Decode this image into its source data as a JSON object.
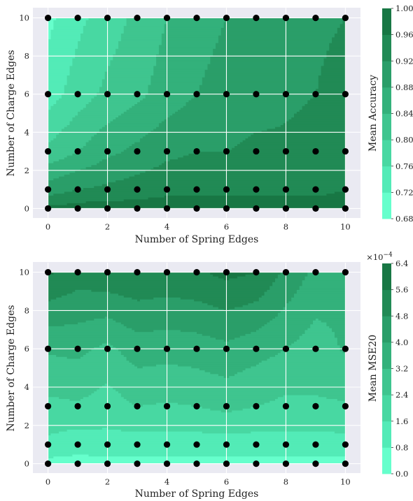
{
  "chart_data": [
    {
      "type": "contour",
      "xlabel": "Number of Spring Edges",
      "ylabel": "Number of Charge Edges",
      "xlim": [
        -0.5,
        10.5
      ],
      "ylim": [
        -0.5,
        10.5
      ],
      "xticks": [
        "0",
        "2",
        "4",
        "6",
        "8",
        "10"
      ],
      "yticks": [
        "0",
        "2",
        "4",
        "6",
        "8",
        "10"
      ],
      "x": [
        0,
        1,
        2,
        3,
        4,
        5,
        6,
        7,
        8,
        9,
        10
      ],
      "y": [
        0,
        1,
        3,
        6,
        10
      ],
      "z": [
        [
          0.97,
          0.98,
          0.98,
          0.98,
          0.98,
          0.98,
          0.98,
          0.98,
          0.98,
          0.98,
          0.98
        ],
        [
          0.9,
          0.92,
          0.93,
          0.94,
          0.95,
          0.95,
          0.95,
          0.95,
          0.95,
          0.95,
          0.96
        ],
        [
          0.81,
          0.84,
          0.87,
          0.89,
          0.91,
          0.92,
          0.92,
          0.93,
          0.93,
          0.94,
          0.96
        ],
        [
          0.74,
          0.78,
          0.81,
          0.83,
          0.86,
          0.88,
          0.89,
          0.9,
          0.91,
          0.92,
          0.96
        ],
        [
          0.71,
          0.75,
          0.78,
          0.81,
          0.84,
          0.87,
          0.88,
          0.89,
          0.89,
          0.9,
          0.92
        ]
      ],
      "colorbar": {
        "label": "Mean Accuracy",
        "levels": [
          0.68,
          0.72,
          0.76,
          0.8,
          0.84,
          0.88,
          0.92,
          0.96,
          1.0
        ],
        "ticks": [
          "0.68",
          "0.72",
          "0.76",
          "0.80",
          "0.84",
          "0.88",
          "0.92",
          "0.96",
          "1.00"
        ]
      },
      "grid": true,
      "markers": "black dots at every grid point"
    },
    {
      "type": "contour",
      "xlabel": "Number of Spring Edges",
      "ylabel": "Number of Charge Edges",
      "xlim": [
        -0.5,
        10.5
      ],
      "ylim": [
        -0.5,
        10.5
      ],
      "xticks": [
        "0",
        "2",
        "4",
        "6",
        "8",
        "10"
      ],
      "yticks": [
        "0",
        "2",
        "4",
        "6",
        "8",
        "10"
      ],
      "x": [
        0,
        1,
        2,
        3,
        4,
        5,
        6,
        7,
        8,
        9,
        10
      ],
      "y": [
        0,
        1,
        3,
        6,
        10
      ],
      "z": [
        [
          0.5,
          0.5,
          0.5,
          0.5,
          0.5,
          0.5,
          0.5,
          0.5,
          0.5,
          0.5,
          0.5
        ],
        [
          1.4,
          1.1,
          1.3,
          1.2,
          1.2,
          1.2,
          1.2,
          1.2,
          1.3,
          1.2,
          1.3
        ],
        [
          2.2,
          2.3,
          2.0,
          2.4,
          2.3,
          2.4,
          2.6,
          2.4,
          2.2,
          2.3,
          2.3
        ],
        [
          3.3,
          3.4,
          3.0,
          3.6,
          3.5,
          3.6,
          3.8,
          3.5,
          3.2,
          2.8,
          3.3
        ],
        [
          5.7,
          5.2,
          5.4,
          5.5,
          5.4,
          5.5,
          5.8,
          5.6,
          4.6,
          3.8,
          3.4
        ]
      ],
      "colorbar": {
        "label": "Mean MSE20",
        "exponent": "×10",
        "exponent_power": "−4",
        "levels": [
          0.0,
          0.8,
          1.6,
          2.4,
          3.2,
          4.0,
          4.8,
          5.6,
          6.4
        ],
        "ticks": [
          "0.0",
          "0.8",
          "1.6",
          "2.4",
          "3.2",
          "4.0",
          "4.8",
          "5.6",
          "6.4"
        ]
      },
      "grid": true,
      "markers": "black dots at every grid point"
    }
  ],
  "colors": {
    "axes_bg": "#eaeaf2",
    "grid": "#ffffff",
    "marker": "#000000",
    "colormap": [
      "#66ffcc",
      "#53ebb7",
      "#48d8a2",
      "#3fc58f",
      "#33b17b",
      "#2a9e69",
      "#218a55",
      "#187744",
      "#0d6432"
    ]
  }
}
